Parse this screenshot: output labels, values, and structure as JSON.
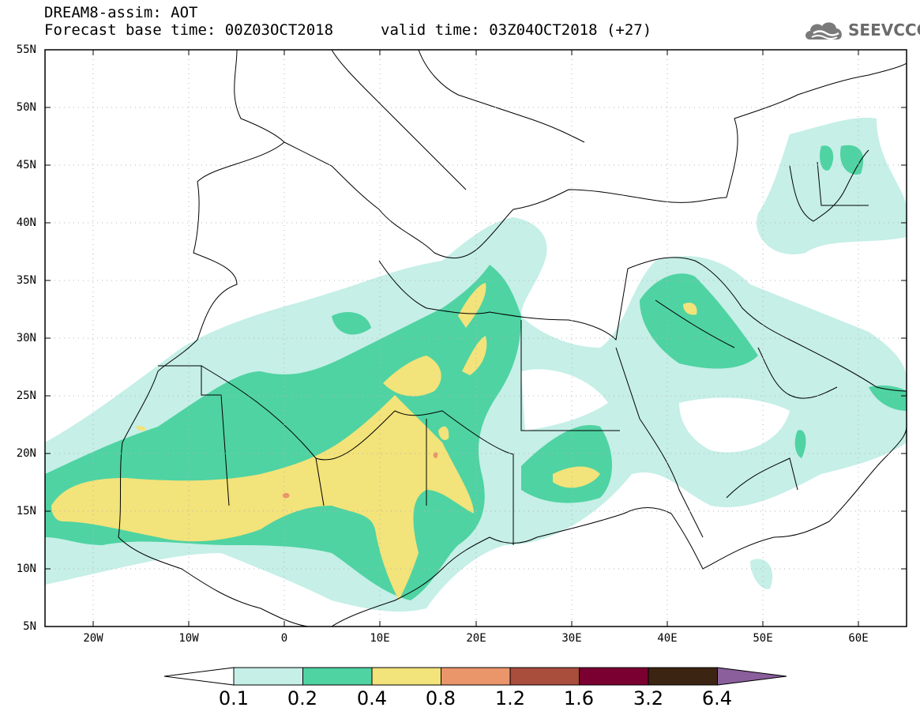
{
  "title": {
    "line1": "DREAM8-assim: AOT",
    "line2": "Forecast base time: 00Z03OCT2018",
    "valid": "valid time: 03Z04OCT2018 (+27)"
  },
  "logo": {
    "text": "SEEVCCC",
    "icon": "cloud-icon"
  },
  "map": {
    "lon_range": [
      -25,
      65
    ],
    "lat_range": [
      5,
      55
    ],
    "lat_ticks": [
      "55N",
      "50N",
      "45N",
      "40N",
      "35N",
      "30N",
      "25N",
      "20N",
      "15N",
      "10N",
      "5N"
    ],
    "lon_ticks": [
      "20W",
      "10W",
      "0",
      "10E",
      "20E",
      "30E",
      "40E",
      "50E",
      "60E"
    ]
  },
  "colorbar": {
    "labels": [
      "0.1",
      "0.2",
      "0.4",
      "0.8",
      "1.2",
      "1.6",
      "3.2",
      "6.4"
    ],
    "colors": [
      "#ffffff",
      "#c5efe7",
      "#4fd3a2",
      "#f2e37a",
      "#eb956b",
      "#a94d3c",
      "#7a0031",
      "#3b2412",
      "#8a5f9c"
    ]
  }
}
